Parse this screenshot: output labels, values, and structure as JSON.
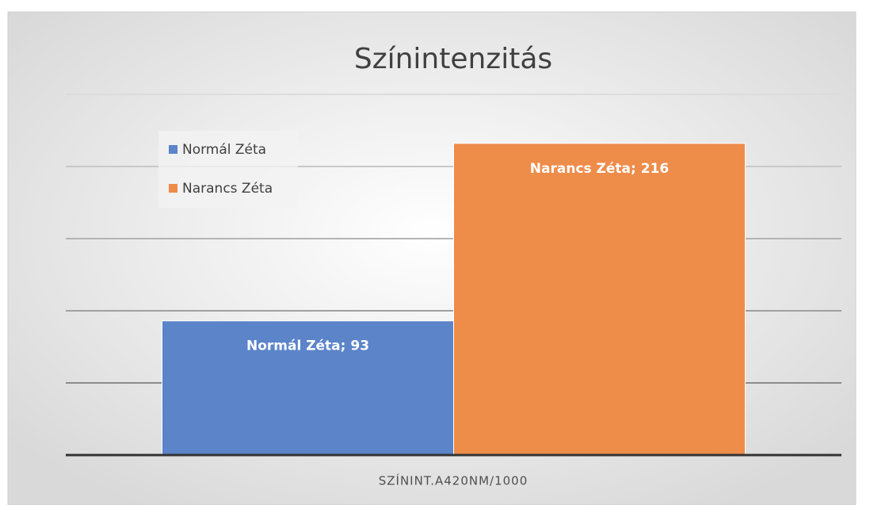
{
  "chart_data": {
    "type": "bar",
    "title": "Színintenzitás",
    "categories": [
      "SZÍNINT.A420NM/1000"
    ],
    "series": [
      {
        "name": "Normál Zéta",
        "color": "#5b84c9",
        "values": [
          93
        ],
        "value_labels": [
          "Normál Zéta; 93"
        ]
      },
      {
        "name": "Narancs Zéta",
        "color": "#ee8c4a",
        "values": [
          216
        ],
        "value_labels": [
          "Narancs Zéta; 216"
        ]
      }
    ],
    "ylim": [
      0,
      250
    ],
    "yticks": [
      0,
      50,
      100,
      150,
      200,
      250
    ],
    "grid": true,
    "legend": "upper left"
  }
}
